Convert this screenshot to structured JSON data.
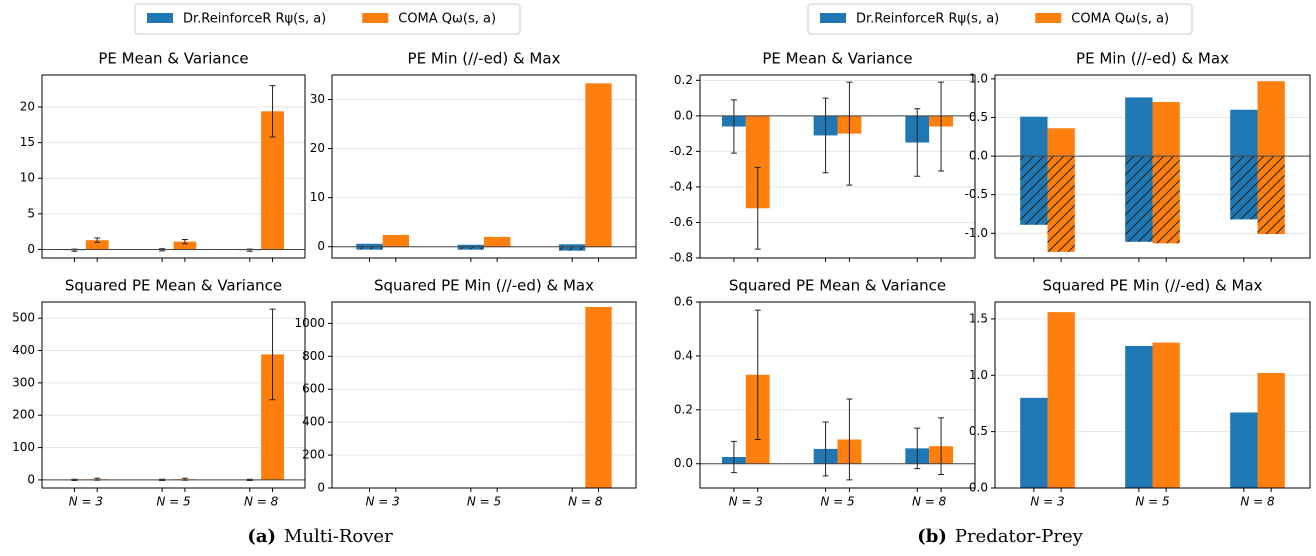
{
  "chart_data": [
    {
      "type": "bar",
      "label": "(a)",
      "caption": "Multi-Rover",
      "grid": true,
      "categories": [
        "N = 3",
        "N = 5",
        "N = 8"
      ],
      "series": [
        {
          "name": "Dr.ReinforceR Rψ(s, a)",
          "color": "#1f77b4"
        },
        {
          "name": "COMA Qω(s, a)",
          "color": "#ff7f0e"
        }
      ],
      "subplots": [
        {
          "title": "PE Mean & Variance",
          "ylim": [
            -1.2,
            24.5
          ],
          "yticks": [
            0,
            5,
            10,
            15,
            20
          ],
          "series": [
            {
              "values": [
                -0.1,
                -0.05,
                -0.1
              ],
              "errors": [
                0.15,
                0.15,
                0.15
              ]
            },
            {
              "values": [
                1.3,
                1.1,
                19.4
              ],
              "errors": [
                0.3,
                0.3,
                3.6
              ]
            }
          ]
        },
        {
          "title": "PE Min (//-ed) & Max",
          "ylim": [
            -2.3,
            35
          ],
          "yticks": [
            0,
            10,
            20,
            30
          ],
          "series": [
            {
              "min": [
                -0.6,
                -0.6,
                -0.8
              ],
              "max": [
                0.6,
                0.4,
                0.5
              ]
            },
            {
              "min": [
                -0.1,
                -0.1,
                -0.1
              ],
              "max": [
                2.4,
                2.0,
                33.3
              ]
            }
          ]
        },
        {
          "title": "Squared PE Mean & Variance",
          "ylim": [
            -25,
            550
          ],
          "yticks": [
            0,
            100,
            200,
            300,
            400,
            500
          ],
          "series": [
            {
              "values": [
                0.1,
                0.1,
                0.1
              ],
              "errors": [
                2,
                2,
                2
              ]
            },
            {
              "values": [
                2,
                2,
                388
              ],
              "errors": [
                3,
                3,
                140
              ]
            }
          ]
        },
        {
          "title": "Squared PE Min (//-ed) & Max",
          "ylim": [
            0,
            1130
          ],
          "yticks": [
            0,
            200,
            400,
            600,
            800,
            1000
          ],
          "series": [
            {
              "values": [
                0.5,
                0.4,
                0.6
              ]
            },
            {
              "values": [
                3,
                1,
                1100
              ]
            }
          ]
        }
      ]
    },
    {
      "type": "bar",
      "label": "(b)",
      "caption": "Predator-Prey",
      "grid": true,
      "categories": [
        "N = 3",
        "N = 5",
        "N = 8"
      ],
      "series": [
        {
          "name": "Dr.ReinforceR Rψ(s, a)",
          "color": "#1f77b4"
        },
        {
          "name": "COMA Qω(s, a)",
          "color": "#ff7f0e"
        }
      ],
      "subplots": [
        {
          "title": "PE Mean & Variance",
          "ylim": [
            -0.8,
            0.23
          ],
          "yticks": [
            -0.8,
            -0.6,
            -0.4,
            -0.2,
            {
              "value": 0,
              "label": "0.0"
            },
            0.2
          ],
          "series": [
            {
              "values": [
                -0.06,
                -0.11,
                -0.15
              ],
              "errors": [
                0.15,
                0.21,
                0.19
              ]
            },
            {
              "values": [
                -0.52,
                -0.1,
                -0.06
              ],
              "errors": [
                0.23,
                0.29,
                0.25
              ]
            }
          ]
        },
        {
          "title": "PE Min (//-ed) & Max",
          "ylim": [
            -1.32,
            1.05
          ],
          "yticks": [
            {
              "value": -1,
              "label": "-1.0"
            },
            -0.5,
            {
              "value": 0,
              "label": "0.0"
            },
            0.5,
            {
              "value": 1,
              "label": "1.0"
            }
          ],
          "series": [
            {
              "min": [
                -0.89,
                -1.11,
                -0.82
              ],
              "max": [
                0.51,
                0.76,
                0.6
              ]
            },
            {
              "min": [
                -1.24,
                -1.13,
                -1.01
              ],
              "max": [
                0.36,
                0.7,
                0.97
              ]
            }
          ]
        },
        {
          "title": "Squared PE Mean & Variance",
          "ylim": [
            -0.09,
            0.6
          ],
          "yticks": [
            {
              "value": 0,
              "label": "0.0"
            },
            0.2,
            0.4,
            0.6
          ],
          "series": [
            {
              "values": [
                0.025,
                0.055,
                0.057
              ],
              "errors": [
                0.058,
                0.1,
                0.075
              ]
            },
            {
              "values": [
                0.33,
                0.09,
                0.065
              ],
              "errors": [
                0.24,
                0.15,
                0.105
              ]
            }
          ]
        },
        {
          "title": "Squared PE Min (//-ed) & Max",
          "ylim": [
            0,
            1.65
          ],
          "yticks": [
            {
              "value": 0,
              "label": "0.0"
            },
            0.5,
            {
              "value": 1,
              "label": "1.0"
            },
            1.5
          ],
          "series": [
            {
              "values": [
                0.8,
                1.26,
                0.67
              ]
            },
            {
              "values": [
                1.56,
                1.29,
                1.02
              ]
            }
          ]
        }
      ]
    }
  ]
}
